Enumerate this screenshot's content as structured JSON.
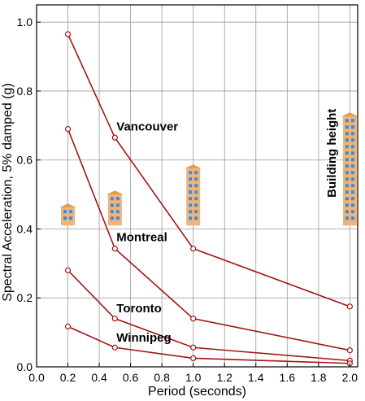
{
  "chart_data": {
    "type": "line",
    "xlabel": "Period (seconds)",
    "ylabel": "Spectral Acceleration, 5% damped (g)",
    "xlim": [
      0.0,
      2.05
    ],
    "ylim": [
      0.0,
      1.05
    ],
    "xticks": [
      0.0,
      0.2,
      0.4,
      0.6,
      0.8,
      1.0,
      1.2,
      1.4,
      1.6,
      1.8,
      2.0
    ],
    "xtick_labels": [
      "0.0",
      "0.2",
      "0.4",
      "0.6",
      "0.8",
      "1.0",
      "1.2",
      "1.4",
      "1.6",
      "1.8",
      "2.0"
    ],
    "yticks": [
      0.0,
      0.2,
      0.4,
      0.6,
      0.8,
      1.0
    ],
    "ytick_labels": [
      "0.0",
      "0.2",
      "0.4",
      "0.6",
      "0.8",
      "1.0"
    ],
    "grid": true,
    "line_color": "#a31515",
    "x": [
      0.2,
      0.5,
      1.0,
      2.0
    ],
    "series": [
      {
        "name": "Vancouver",
        "values": [
          0.965,
          0.665,
          0.343,
          0.175
        ]
      },
      {
        "name": "Montreal",
        "values": [
          0.69,
          0.343,
          0.14,
          0.048
        ]
      },
      {
        "name": "Toronto",
        "values": [
          0.28,
          0.14,
          0.056,
          0.018
        ]
      },
      {
        "name": "Winnipeg",
        "values": [
          0.117,
          0.056,
          0.025,
          0.01
        ]
      }
    ],
    "annotations": {
      "building_height_label": "Building height",
      "building_color": "#f0b478",
      "window_color": "#3d8ad6",
      "buildings": [
        {
          "period": 0.2,
          "floors": 2
        },
        {
          "period": 0.5,
          "floors": 4
        },
        {
          "period": 1.0,
          "floors": 8
        },
        {
          "period": 2.0,
          "floors": 16
        }
      ]
    }
  }
}
